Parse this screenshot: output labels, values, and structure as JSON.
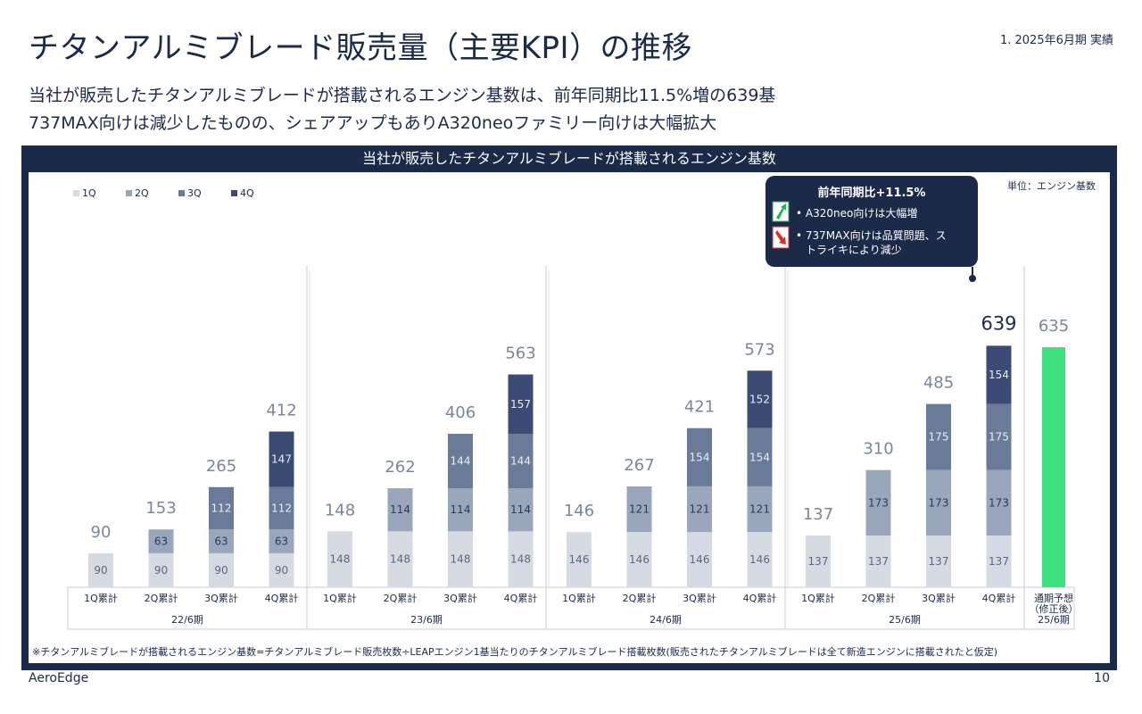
{
  "header": {
    "title": "チタンアルミブレード販売量（主要KPI）の推移",
    "period_tag": "1. 2025年6月期 実績",
    "line1": "当社が販売したチタンアルミブレードが搭載されるエンジン基数は、前年同期比11.5%増の639基",
    "line2": "737MAX向けは減少したものの、シェアアップもありA320neoファミリー向けは大幅拡大"
  },
  "chart_data": {
    "type": "bar",
    "title": "当社が販売したチタンアルミブレードが搭載されるエンジン基数",
    "unit": "単位：エンジン基数",
    "stacked": true,
    "legend": [
      "1Q",
      "2Q",
      "3Q",
      "4Q"
    ],
    "legend_position": "top-left",
    "colors": {
      "1Q": "#d5dae3",
      "2Q": "#9aa6bc",
      "3Q": "#6a7b99",
      "4Q": "#3b4b74",
      "forecast": "#3ee07f"
    },
    "fiscal_years": [
      {
        "label": "22/6期",
        "categories": [
          "1Q累計",
          "2Q累計",
          "3Q累計",
          "4Q累計"
        ],
        "quarters": [
          90,
          63,
          112,
          147
        ],
        "totals": [
          90,
          153,
          265,
          412
        ]
      },
      {
        "label": "23/6期",
        "categories": [
          "1Q累計",
          "2Q累計",
          "3Q累計",
          "4Q累計"
        ],
        "quarters": [
          148,
          114,
          144,
          157
        ],
        "totals": [
          148,
          262,
          406,
          563
        ]
      },
      {
        "label": "24/6期",
        "categories": [
          "1Q累計",
          "2Q累計",
          "3Q累計",
          "4Q累計"
        ],
        "quarters": [
          146,
          121,
          154,
          152
        ],
        "totals": [
          146,
          267,
          421,
          573
        ]
      },
      {
        "label": "25/6期",
        "categories": [
          "1Q累計",
          "2Q累計",
          "3Q累計",
          "4Q累計"
        ],
        "quarters": [
          137,
          173,
          175,
          154
        ],
        "totals": [
          137,
          310,
          485,
          639
        ]
      }
    ],
    "forecast": {
      "category": "通期予想（修正後）",
      "category_lines": [
        "通期予想",
        "（修正後）"
      ],
      "fy_label": "25/6期",
      "value": 635
    },
    "ylim": [
      0,
      700
    ],
    "grid": false,
    "callout": {
      "title": "前年同期比+11.5%",
      "bullets": [
        {
          "icon": "green-up-arrow-icon",
          "lines": [
            "A320neo向けは大幅増"
          ]
        },
        {
          "icon": "red-down-arrow-icon",
          "lines": [
            "737MAX向けは品質問題、ス",
            "トライキにより減少"
          ]
        }
      ]
    }
  },
  "footer": {
    "footnote": "※チタンアルミブレードが搭載されるエンジン基数=チタンアルミブレード販売枚数÷LEAPエンジン1基当たりのチタンアルミブレード搭載枚数(販売されたチタンアルミブレードは全て新造エンジンに搭載されたと仮定)",
    "brand": "AeroEdge",
    "page_number": "10"
  }
}
